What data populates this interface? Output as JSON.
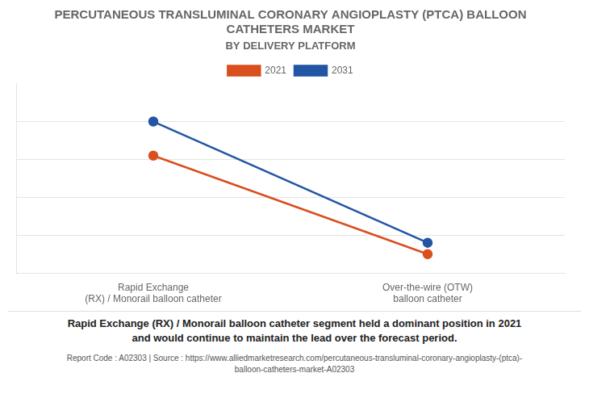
{
  "chart_data": {
    "type": "line",
    "title": "PERCUTANEOUS TRANSLUMINAL CORONARY ANGIOPLASTY (PTCA) BALLOON\nCATHETERS MARKET",
    "subtitle": "BY DELIVERY PLATFORM",
    "categories": [
      "Rapid Exchange\n(RX) / Monorail balloon catheter",
      "Over-the-wire (OTW)\nballoon catheter"
    ],
    "series": [
      {
        "name": "2021",
        "color": "#d94f1e",
        "values": [
          0.62,
          0.1
        ],
        "marker": "circle"
      },
      {
        "name": "2031",
        "color": "#2255a4",
        "values": [
          0.8,
          0.16
        ],
        "marker": "circle"
      }
    ],
    "ylim": [
      0.0,
      1.0
    ],
    "yticks": [
      0.2,
      0.4,
      0.6,
      0.8
    ],
    "grid": true,
    "tick_labels": "x",
    "legend": "top",
    "annotation": "Rapid Exchange (RX) / Monorail balloon catheter segment held a dominant position in 2021\nand would continue to maintain the lead over the forecast period.",
    "footer": "Report Code : A02303  |  Source : https://www.alliedmarketresearch.com/percutaneous-transluminal-coronary-angioplasty-(ptca)-\nballoon-catheters-market-A02303"
  }
}
